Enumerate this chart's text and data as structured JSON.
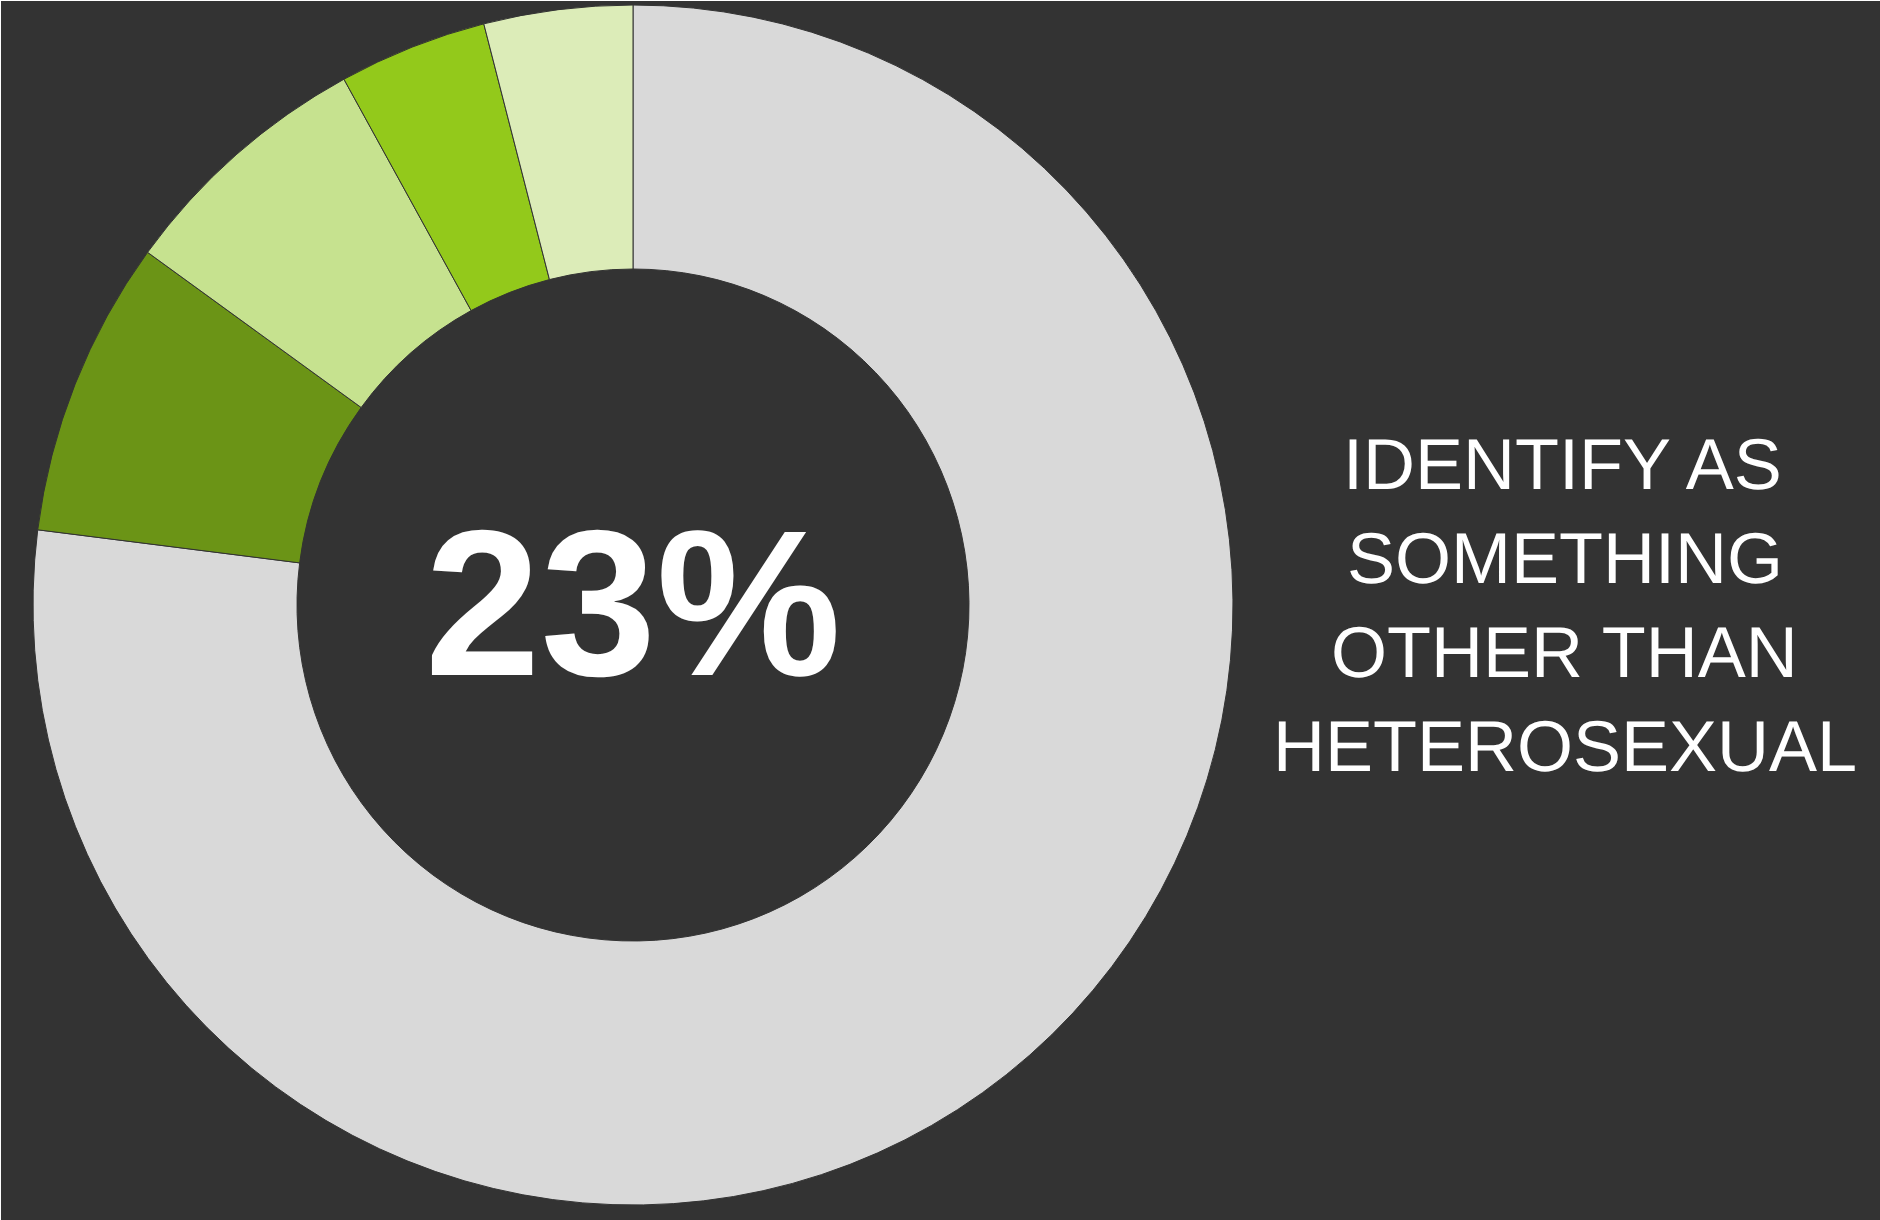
{
  "chart_data": {
    "type": "donut",
    "categories": [
      null,
      null,
      null,
      null,
      null
    ],
    "values": [
      77,
      8,
      7,
      4,
      4
    ],
    "colors": [
      "#d9d9d9",
      "#6b9416",
      "#c6e28f",
      "#93c91b",
      "#dcecb8"
    ],
    "annotations": [
      "23%",
      "IDENTIFY AS\nSOMETHING\nOTHER THAN\nHETEROSEXUAL"
    ]
  }
}
